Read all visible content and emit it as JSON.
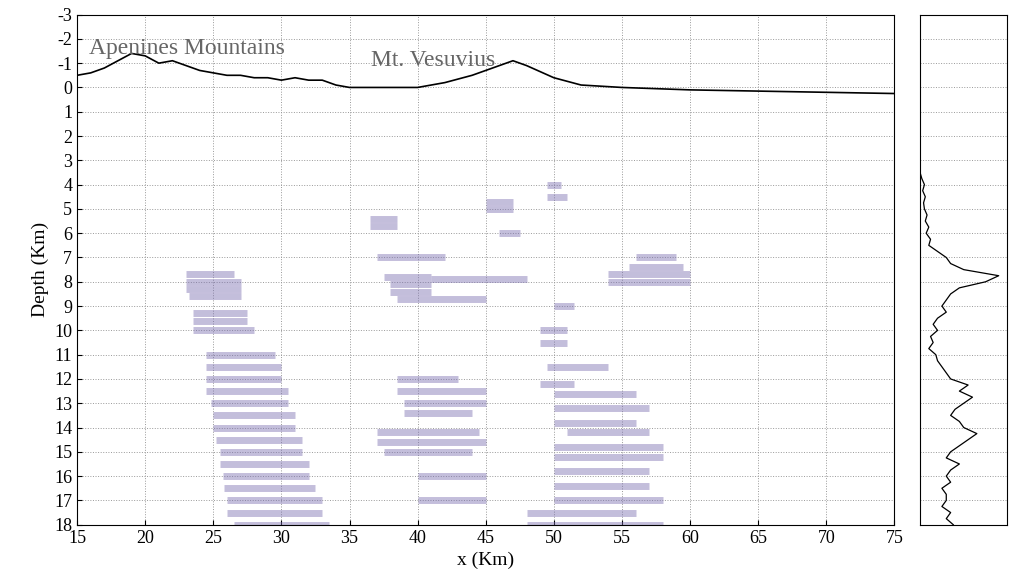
{
  "chart_data": [
    {
      "type": "section",
      "xlabel": "x (Km)",
      "ylabel": "Depth (Km)",
      "annotations": [
        "Apenines Mountains",
        "Mt. Vesuvius"
      ],
      "xlim": [
        15,
        75
      ],
      "xticks": [
        15,
        20,
        25,
        30,
        35,
        40,
        45,
        50,
        55,
        60,
        65,
        70,
        75
      ],
      "ylim": [
        18,
        -3
      ],
      "yticks": [
        -3,
        -2,
        -1,
        0,
        1,
        2,
        3,
        4,
        5,
        6,
        7,
        8,
        9,
        10,
        11,
        12,
        13,
        14,
        15,
        16,
        17,
        18
      ],
      "grid": true,
      "topography": {
        "color": "#000000",
        "x": [
          15,
          16,
          17,
          18,
          19,
          20,
          21,
          22,
          23,
          24,
          25,
          26,
          27,
          28,
          29,
          30,
          31,
          32,
          33,
          34,
          35,
          40,
          42,
          44,
          46,
          47,
          48,
          50,
          52,
          55,
          60,
          65,
          70,
          75
        ],
        "values": [
          -0.5,
          -0.6,
          -0.8,
          -1.1,
          -1.4,
          -1.3,
          -1.0,
          -1.1,
          -0.9,
          -0.7,
          -0.6,
          -0.5,
          -0.5,
          -0.4,
          -0.4,
          -0.3,
          -0.4,
          -0.3,
          -0.3,
          -0.1,
          0,
          0,
          -0.2,
          -0.5,
          -0.9,
          -1.1,
          -0.9,
          -0.4,
          -0.1,
          0,
          0.1,
          0.15,
          0.2,
          0.25
        ]
      },
      "reflectors": {
        "color": "#7b6fb0",
        "segments": [
          {
            "x": [
              23,
              26.5
            ],
            "depth": 7.7
          },
          {
            "x": [
              23,
              27
            ],
            "depth": 8.0
          },
          {
            "x": [
              23,
              27
            ],
            "depth": 8.3
          },
          {
            "x": [
              23.2,
              27
            ],
            "depth": 8.6
          },
          {
            "x": [
              23.5,
              27.5
            ],
            "depth": 9.3
          },
          {
            "x": [
              23.5,
              27.5
            ],
            "depth": 9.6
          },
          {
            "x": [
              23.5,
              28
            ],
            "depth": 10.0
          },
          {
            "x": [
              24.5,
              29.5
            ],
            "depth": 11.0
          },
          {
            "x": [
              24.5,
              30
            ],
            "depth": 11.5
          },
          {
            "x": [
              24.5,
              30
            ],
            "depth": 12.0
          },
          {
            "x": [
              24.5,
              30.5
            ],
            "depth": 12.5
          },
          {
            "x": [
              24.8,
              30.5
            ],
            "depth": 13.0
          },
          {
            "x": [
              25,
              31
            ],
            "depth": 13.5
          },
          {
            "x": [
              25,
              31
            ],
            "depth": 14.0
          },
          {
            "x": [
              25.2,
              31.5
            ],
            "depth": 14.5
          },
          {
            "x": [
              25.5,
              31.5
            ],
            "depth": 15.0
          },
          {
            "x": [
              25.5,
              32
            ],
            "depth": 15.5
          },
          {
            "x": [
              25.7,
              32
            ],
            "depth": 16.0
          },
          {
            "x": [
              25.8,
              32.5
            ],
            "depth": 16.5
          },
          {
            "x": [
              26,
              33
            ],
            "depth": 17.0
          },
          {
            "x": [
              26,
              33
            ],
            "depth": 17.5
          },
          {
            "x": [
              26.5,
              33.5
            ],
            "depth": 18.0
          },
          {
            "x": [
              36.5,
              38.5
            ],
            "depth": 5.4
          },
          {
            "x": [
              36.5,
              38.5
            ],
            "depth": 5.7
          },
          {
            "x": [
              37,
              42
            ],
            "depth": 7.0
          },
          {
            "x": [
              37.5,
              41
            ],
            "depth": 7.8
          },
          {
            "x": [
              38,
              41
            ],
            "depth": 8.1
          },
          {
            "x": [
              38,
              41
            ],
            "depth": 8.4
          },
          {
            "x": [
              38.5,
              45
            ],
            "depth": 8.7
          },
          {
            "x": [
              41,
              48
            ],
            "depth": 7.9
          },
          {
            "x": [
              38.5,
              43
            ],
            "depth": 12.0
          },
          {
            "x": [
              38.5,
              45
            ],
            "depth": 12.5
          },
          {
            "x": [
              39,
              45
            ],
            "depth": 13.0
          },
          {
            "x": [
              39,
              44
            ],
            "depth": 13.4
          },
          {
            "x": [
              37,
              44.5
            ],
            "depth": 14.2
          },
          {
            "x": [
              37,
              45
            ],
            "depth": 14.6
          },
          {
            "x": [
              37.5,
              44
            ],
            "depth": 15.0
          },
          {
            "x": [
              40,
              45
            ],
            "depth": 16.0
          },
          {
            "x": [
              40,
              45
            ],
            "depth": 17.0
          },
          {
            "x": [
              45,
              47
            ],
            "depth": 4.7
          },
          {
            "x": [
              45,
              47
            ],
            "depth": 5.0
          },
          {
            "x": [
              46,
              47.5
            ],
            "depth": 6.0
          },
          {
            "x": [
              49.5,
              50.5
            ],
            "depth": 4.0
          },
          {
            "x": [
              49.5,
              51
            ],
            "depth": 4.5
          },
          {
            "x": [
              54,
              60
            ],
            "depth": 7.7
          },
          {
            "x": [
              54,
              60
            ],
            "depth": 8.0
          },
          {
            "x": [
              56,
              59
            ],
            "depth": 7.0
          },
          {
            "x": [
              55.5,
              59.5
            ],
            "depth": 7.4
          },
          {
            "x": [
              50,
              51.5
            ],
            "depth": 9.0
          },
          {
            "x": [
              49,
              51
            ],
            "depth": 10.0
          },
          {
            "x": [
              49,
              51
            ],
            "depth": 10.5
          },
          {
            "x": [
              49.5,
              54
            ],
            "depth": 11.5
          },
          {
            "x": [
              49,
              51.5
            ],
            "depth": 12.2
          },
          {
            "x": [
              50,
              56
            ],
            "depth": 12.6
          },
          {
            "x": [
              50,
              57
            ],
            "depth": 13.2
          },
          {
            "x": [
              50,
              56
            ],
            "depth": 13.8
          },
          {
            "x": [
              51,
              57
            ],
            "depth": 14.2
          },
          {
            "x": [
              50,
              58
            ],
            "depth": 14.8
          },
          {
            "x": [
              50,
              58
            ],
            "depth": 15.2
          },
          {
            "x": [
              50,
              57
            ],
            "depth": 15.8
          },
          {
            "x": [
              50,
              57
            ],
            "depth": 16.4
          },
          {
            "x": [
              50,
              58
            ],
            "depth": 17.0
          },
          {
            "x": [
              48,
              56
            ],
            "depth": 17.5
          },
          {
            "x": [
              48,
              58
            ],
            "depth": 18.0
          }
        ]
      }
    },
    {
      "type": "line",
      "tick_labels": false,
      "grid": true,
      "color": "#000000",
      "xlim": [
        0,
        1
      ],
      "ylim": [
        18,
        -3
      ],
      "yticks": [
        -3,
        -2,
        -1,
        0,
        1,
        2,
        3,
        4,
        5,
        6,
        7,
        8,
        9,
        10,
        11,
        12,
        13,
        14,
        15,
        16,
        17,
        18
      ],
      "depth": [
        3.5,
        3.75,
        4.0,
        4.25,
        4.5,
        4.75,
        5.0,
        5.25,
        5.5,
        5.75,
        6.0,
        6.25,
        6.5,
        6.75,
        7.0,
        7.25,
        7.5,
        7.75,
        8.0,
        8.25,
        8.5,
        8.75,
        9.0,
        9.25,
        9.5,
        9.75,
        10.0,
        10.25,
        10.5,
        10.75,
        11.0,
        11.25,
        11.5,
        11.75,
        12.0,
        12.25,
        12.5,
        12.75,
        13.0,
        13.25,
        13.5,
        13.75,
        14.0,
        14.25,
        14.5,
        14.75,
        15.0,
        15.25,
        15.5,
        15.75,
        16.0,
        16.25,
        16.5,
        16.75,
        17.0,
        17.25,
        17.5,
        17.75,
        18.0
      ],
      "values": [
        0.0,
        0.02,
        0.05,
        0.03,
        0.06,
        0.04,
        0.05,
        0.08,
        0.06,
        0.1,
        0.07,
        0.12,
        0.1,
        0.2,
        0.3,
        0.35,
        0.5,
        0.9,
        0.75,
        0.45,
        0.35,
        0.3,
        0.25,
        0.3,
        0.2,
        0.15,
        0.2,
        0.12,
        0.15,
        0.1,
        0.18,
        0.2,
        0.25,
        0.3,
        0.35,
        0.55,
        0.45,
        0.6,
        0.5,
        0.4,
        0.35,
        0.45,
        0.5,
        0.65,
        0.55,
        0.45,
        0.35,
        0.3,
        0.45,
        0.35,
        0.3,
        0.35,
        0.25,
        0.3,
        0.3,
        0.25,
        0.35,
        0.3,
        0.38
      ]
    }
  ]
}
